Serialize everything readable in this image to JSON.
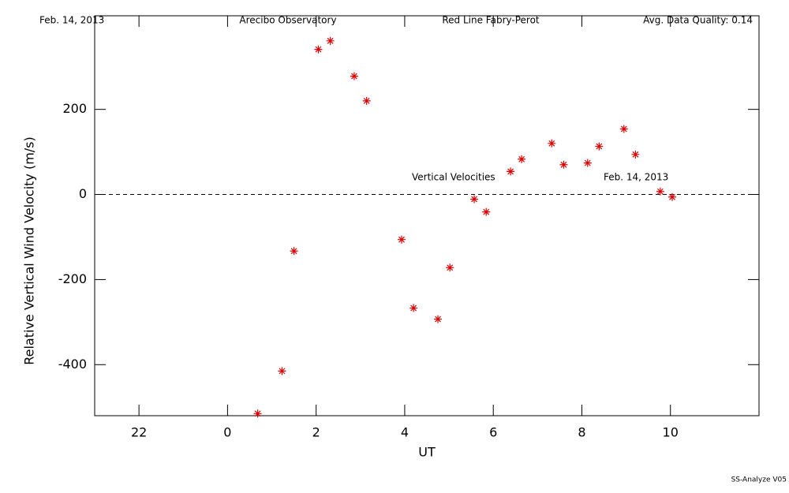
{
  "chart_data": {
    "type": "scatter",
    "header": [
      "Feb. 14, 2013",
      "Arecibo Observatory",
      "Red Line Fabry-Perot",
      "Avg. Data Quality: 0.14"
    ],
    "xlabel": "UT",
    "ylabel": "Relative Vertical Wind Velocity (m/s)",
    "annotations": [
      "Vertical Velocities",
      "Feb. 14, 2013"
    ],
    "footer": "SS-Analyze V05",
    "color": "#e00000",
    "hline": 0,
    "xlim": [
      -3,
      12
    ],
    "ylim": [
      -520,
      420
    ],
    "xticks": [
      {
        "value": -2,
        "label": "22"
      },
      0,
      2,
      4,
      6,
      8,
      10
    ],
    "yticks": [
      -400,
      -200,
      0,
      200
    ],
    "x": [
      0.68,
      1.23,
      1.5,
      2.05,
      2.32,
      2.86,
      3.14,
      3.93,
      4.2,
      4.75,
      5.02,
      5.57,
      5.84,
      6.39,
      6.64,
      7.32,
      7.59,
      8.13,
      8.39,
      8.95,
      9.21,
      9.77,
      10.04
    ],
    "values": [
      -515,
      -415,
      -133,
      341,
      361,
      278,
      220,
      -106,
      -267,
      -293,
      -172,
      -11,
      -41,
      54,
      83,
      120,
      70,
      74,
      113,
      154,
      94,
      7,
      -6
    ]
  }
}
